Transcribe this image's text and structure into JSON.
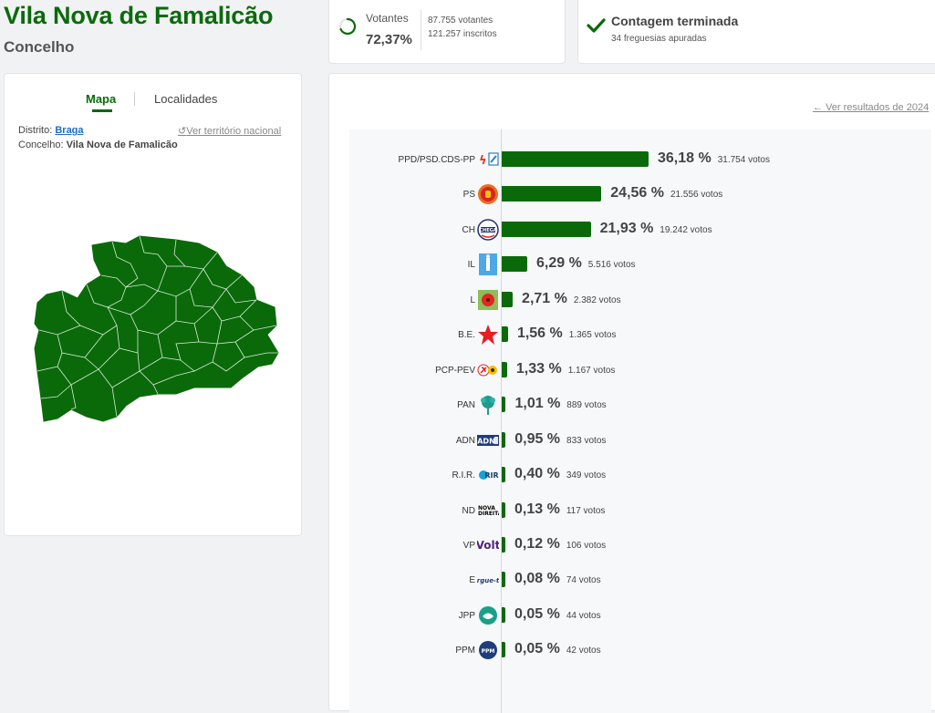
{
  "header": {
    "title": "Vila Nova de Famalicão",
    "subtitle": "Concelho"
  },
  "votantes": {
    "label": "Votantes",
    "percent": "72,37%",
    "voters": "87.755 votantes",
    "registered": "121.257 inscritos"
  },
  "contagem": {
    "title": "Contagem terminada",
    "subtitle": "34 freguesias apuradas"
  },
  "map_panel": {
    "tabs": [
      {
        "label": "Mapa",
        "active": true
      },
      {
        "label": "Localidades",
        "active": false
      }
    ],
    "distrito_label": "Distrito:",
    "distrito_value": "Braga",
    "concelho_label": "Concelho:",
    "concelho_value": "Vila Nova de Famalicão",
    "ver_territorio": "Ver território nacional",
    "map_color": "#0a6a0a"
  },
  "results": {
    "ver_2024": "Ver resultados de 2024",
    "bar_color": "#0a6a0a",
    "parties": [
      {
        "name": "PPD/PSD.CDS-PP",
        "percent": 36.18,
        "percent_label": "36,18 %",
        "votes": "31.754 votos",
        "logo": "psd-cds-logo"
      },
      {
        "name": "PS",
        "percent": 24.56,
        "percent_label": "24,56 %",
        "votes": "21.556 votos",
        "logo": "ps-logo"
      },
      {
        "name": "CH",
        "percent": 21.93,
        "percent_label": "21,93 %",
        "votes": "19.242 votos",
        "logo": "chega-logo"
      },
      {
        "name": "IL",
        "percent": 6.29,
        "percent_label": "6,29 %",
        "votes": "5.516 votos",
        "logo": "il-logo"
      },
      {
        "name": "L",
        "percent": 2.71,
        "percent_label": "2,71 %",
        "votes": "2.382 votos",
        "logo": "livre-logo"
      },
      {
        "name": "B.E.",
        "percent": 1.56,
        "percent_label": "1,56 %",
        "votes": "1.365 votos",
        "logo": "be-logo"
      },
      {
        "name": "PCP-PEV",
        "percent": 1.33,
        "percent_label": "1,33 %",
        "votes": "1.167 votos",
        "logo": "pcp-pev-logo"
      },
      {
        "name": "PAN",
        "percent": 1.01,
        "percent_label": "1,01 %",
        "votes": "889 votos",
        "logo": "pan-logo"
      },
      {
        "name": "ADN",
        "percent": 0.95,
        "percent_label": "0,95 %",
        "votes": "833 votos",
        "logo": "adn-logo"
      },
      {
        "name": "R.I.R.",
        "percent": 0.4,
        "percent_label": "0,40 %",
        "votes": "349 votos",
        "logo": "rir-logo"
      },
      {
        "name": "ND",
        "percent": 0.13,
        "percent_label": "0,13 %",
        "votes": "117 votos",
        "logo": "nova-direita-logo"
      },
      {
        "name": "VP",
        "percent": 0.12,
        "percent_label": "0,12 %",
        "votes": "106 votos",
        "logo": "volt-logo"
      },
      {
        "name": "E",
        "percent": 0.08,
        "percent_label": "0,08 %",
        "votes": "74 votos",
        "logo": "ergue-te-logo"
      },
      {
        "name": "JPP",
        "percent": 0.05,
        "percent_label": "0,05 %",
        "votes": "44 votos",
        "logo": "jpp-logo"
      },
      {
        "name": "PPM",
        "percent": 0.05,
        "percent_label": "0,05 %",
        "votes": "42 votos",
        "logo": "ppm-logo"
      }
    ]
  }
}
